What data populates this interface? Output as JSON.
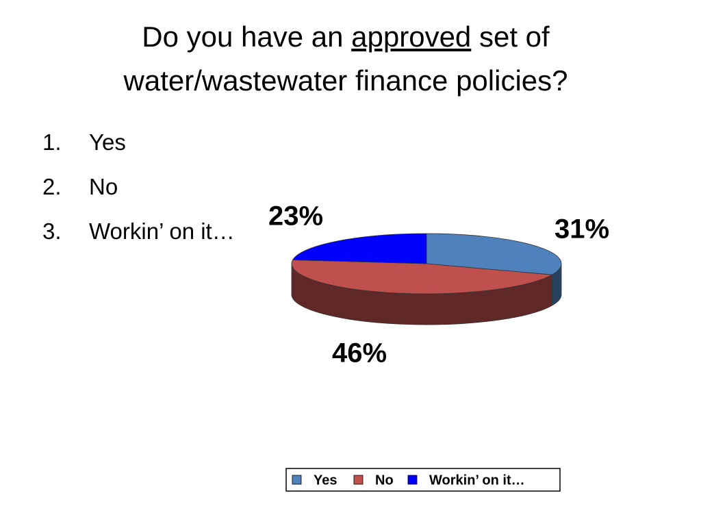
{
  "slide": {
    "title_parts": [
      "Do you have an ",
      "approved",
      " set of",
      "water/wastewater finance policies?"
    ],
    "list_numbers": [
      "1.",
      "2.",
      "3."
    ],
    "list": [
      "Yes",
      "No",
      "Workin’ on it…"
    ]
  },
  "chart_data": {
    "type": "pie3d",
    "categories": [
      "Yes",
      "No",
      "Workin’ on it…"
    ],
    "values": [
      31,
      46,
      23
    ],
    "value_labels": [
      "31%",
      "46%",
      "23%"
    ],
    "colors": [
      "#4f81bd",
      "#c0504d",
      "#0000ff"
    ],
    "legend": "bottom"
  }
}
